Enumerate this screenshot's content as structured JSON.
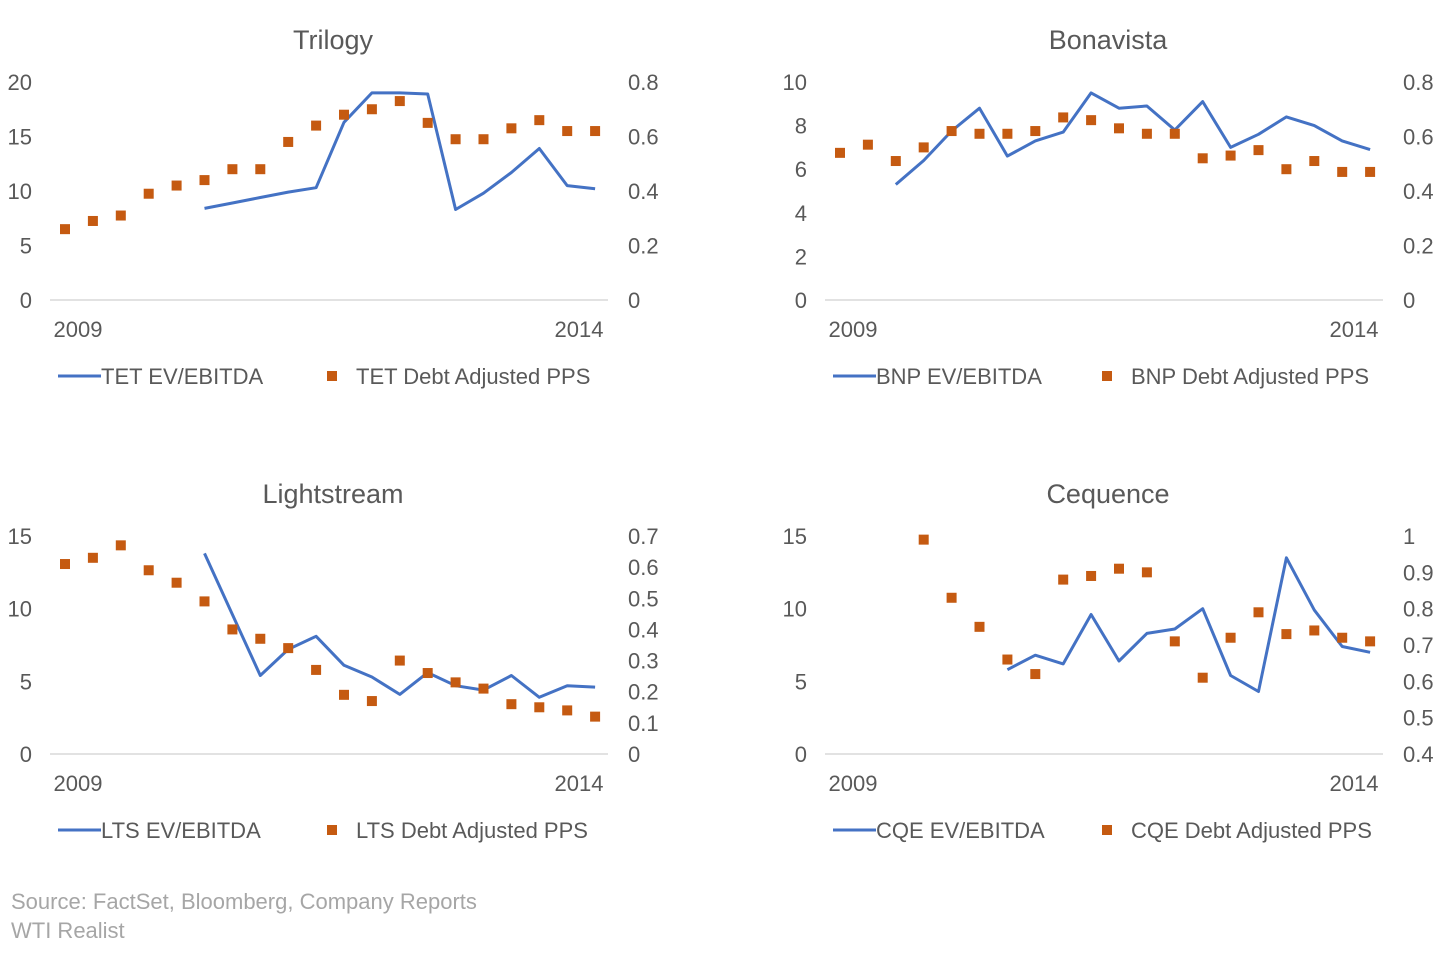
{
  "colors": {
    "line": "#4472C4",
    "marker": "#C55A11",
    "axis": "#D9D9D9",
    "text": "#595959",
    "source": "#A6A6A6"
  },
  "source": {
    "line1": "Source: FactSet, Bloomberg, Company Reports",
    "line2": "WTI Realist"
  },
  "chart_data": [
    {
      "type": "line",
      "title": "Trilogy",
      "x_tick_labels": [
        "2009",
        "2014"
      ],
      "left_axis": {
        "range": [
          0,
          20
        ],
        "ticks": [
          "0",
          "5",
          "10",
          "15",
          "20"
        ]
      },
      "right_axis": {
        "range": [
          0,
          0.8
        ],
        "ticks": [
          "0",
          "0.2",
          "0.4",
          "0.6",
          "0.8"
        ]
      },
      "legend_position": "bottom",
      "grid": false,
      "series": [
        {
          "name": "TET EV/EBITDA",
          "kind": "line",
          "axis": "left",
          "values": [
            null,
            null,
            null,
            null,
            null,
            8.4,
            8.9,
            9.4,
            9.9,
            10.3,
            16.3,
            19.0,
            19.0,
            18.9,
            8.3,
            9.8,
            11.7,
            13.9,
            10.5,
            10.2
          ]
        },
        {
          "name": "TET Debt Adjusted PPS",
          "kind": "marker",
          "axis": "right",
          "values": [
            0.26,
            0.29,
            0.31,
            0.39,
            0.42,
            0.44,
            0.48,
            0.48,
            0.58,
            0.64,
            0.68,
            0.7,
            0.73,
            0.65,
            0.59,
            0.59,
            0.63,
            0.66,
            0.62,
            0.62
          ]
        }
      ]
    },
    {
      "type": "line",
      "title": "Bonavista",
      "x_tick_labels": [
        "2009",
        "2014"
      ],
      "left_axis": {
        "range": [
          0,
          10
        ],
        "ticks": [
          "0",
          "2",
          "4",
          "6",
          "8",
          "10"
        ]
      },
      "right_axis": {
        "range": [
          0,
          0.8
        ],
        "ticks": [
          "0",
          "0.2",
          "0.4",
          "0.6",
          "0.8"
        ]
      },
      "legend_position": "bottom",
      "grid": false,
      "series": [
        {
          "name": "BNP EV/EBITDA",
          "kind": "line",
          "axis": "left",
          "values": [
            null,
            null,
            5.3,
            6.4,
            7.75,
            8.8,
            6.6,
            7.3,
            7.7,
            9.5,
            8.8,
            8.9,
            7.8,
            9.1,
            7.0,
            7.6,
            8.4,
            8.0,
            7.3,
            6.9
          ]
        },
        {
          "name": "BNP Debt Adjusted PPS",
          "kind": "marker",
          "axis": "right",
          "values": [
            0.54,
            0.57,
            0.51,
            0.56,
            0.62,
            0.61,
            0.61,
            0.62,
            0.67,
            0.66,
            0.63,
            0.61,
            0.61,
            0.52,
            0.53,
            0.55,
            0.48,
            0.51,
            0.47,
            0.47
          ]
        }
      ]
    },
    {
      "type": "line",
      "title": "Lightstream",
      "x_tick_labels": [
        "2009",
        "2014"
      ],
      "left_axis": {
        "range": [
          0,
          15
        ],
        "ticks": [
          "0",
          "5",
          "10",
          "15"
        ]
      },
      "right_axis": {
        "range": [
          0,
          0.7
        ],
        "ticks": [
          "0",
          "0.1",
          "0.2",
          "0.3",
          "0.4",
          "0.5",
          "0.6",
          "0.7"
        ]
      },
      "legend_position": "bottom",
      "grid": false,
      "series": [
        {
          "name": "LTS EV/EBITDA",
          "kind": "line",
          "axis": "left",
          "values": [
            null,
            null,
            null,
            null,
            null,
            13.8,
            9.6,
            5.4,
            7.2,
            8.1,
            6.1,
            5.3,
            4.1,
            5.6,
            4.7,
            4.4,
            5.4,
            3.9,
            4.7,
            4.6
          ]
        },
        {
          "name": "LTS Debt Adjusted PPS",
          "kind": "marker",
          "axis": "right",
          "values": [
            0.61,
            0.63,
            0.67,
            0.59,
            0.55,
            0.49,
            0.4,
            0.37,
            0.34,
            0.27,
            0.19,
            0.17,
            0.3,
            0.26,
            0.23,
            0.21,
            0.16,
            0.15,
            0.14,
            0.12
          ]
        }
      ]
    },
    {
      "type": "line",
      "title": "Cequence",
      "x_tick_labels": [
        "2009",
        "2014"
      ],
      "left_axis": {
        "range": [
          0,
          15
        ],
        "ticks": [
          "0",
          "5",
          "10",
          "15"
        ]
      },
      "right_axis": {
        "range": [
          0.4,
          1
        ],
        "ticks": [
          "0.4",
          "0.5",
          "0.6",
          "0.7",
          "0.8",
          "0.9",
          "1"
        ]
      },
      "legend_position": "bottom",
      "grid": false,
      "series": [
        {
          "name": "CQE EV/EBITDA",
          "kind": "line",
          "axis": "left",
          "values": [
            null,
            null,
            null,
            null,
            null,
            null,
            5.8,
            6.8,
            6.2,
            9.6,
            6.4,
            8.3,
            8.6,
            10.0,
            5.4,
            4.3,
            13.5,
            9.9,
            7.4,
            7.0
          ]
        },
        {
          "name": "CQE Debt Adjusted PPS",
          "kind": "marker",
          "axis": "right",
          "values": [
            null,
            null,
            null,
            0.99,
            0.83,
            0.75,
            0.66,
            0.62,
            0.88,
            0.89,
            0.91,
            0.9,
            0.71,
            0.61,
            0.72,
            0.79,
            0.73,
            0.74,
            0.72,
            0.71
          ]
        }
      ]
    }
  ]
}
